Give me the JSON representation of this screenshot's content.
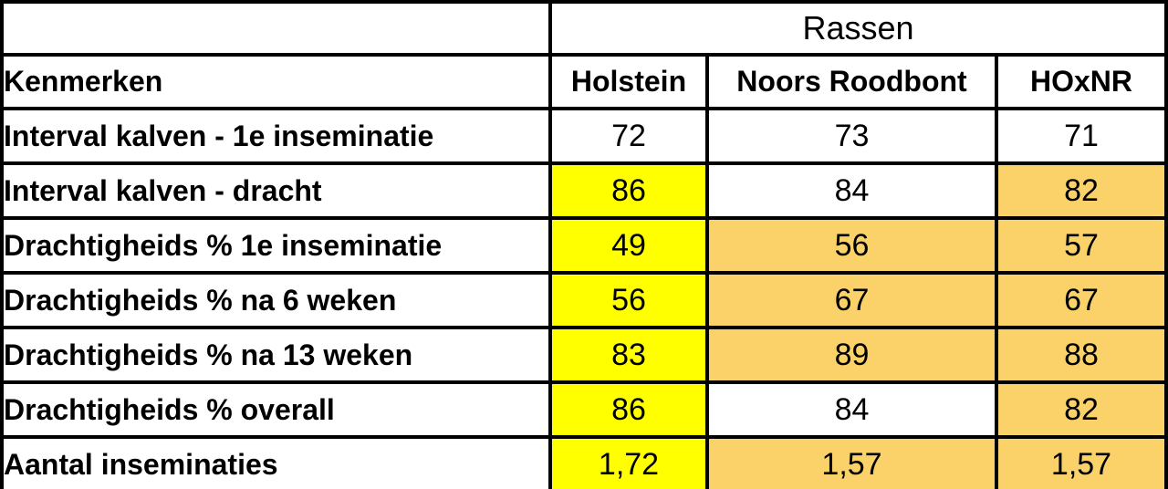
{
  "colors": {
    "white": "#ffffff",
    "yellow": "#ffff00",
    "gold": "#fbd269",
    "border": "#000000",
    "text": "#000000"
  },
  "chart_data": {
    "type": "table",
    "group_header": "Rassen",
    "corner_header": "Kenmerken",
    "columns": [
      "Holstein",
      "Noors Roodbont",
      "HOxNR"
    ],
    "rows": [
      {
        "label": "Interval kalven - 1e inseminatie",
        "values": [
          "72",
          "73",
          "71"
        ],
        "fills": [
          "white",
          "white",
          "white"
        ]
      },
      {
        "label": "Interval kalven - dracht",
        "values": [
          "86",
          "84",
          "82"
        ],
        "fills": [
          "yellow",
          "white",
          "gold"
        ]
      },
      {
        "label": "Drachtigheids % 1e inseminatie",
        "values": [
          "49",
          "56",
          "57"
        ],
        "fills": [
          "yellow",
          "gold",
          "gold"
        ]
      },
      {
        "label": "Drachtigheids % na 6 weken",
        "values": [
          "56",
          "67",
          "67"
        ],
        "fills": [
          "yellow",
          "gold",
          "gold"
        ]
      },
      {
        "label": "Drachtigheids % na 13 weken",
        "values": [
          "83",
          "89",
          "88"
        ],
        "fills": [
          "yellow",
          "gold",
          "gold"
        ]
      },
      {
        "label": "Drachtigheids % overall",
        "values": [
          "86",
          "84",
          "82"
        ],
        "fills": [
          "yellow",
          "white",
          "gold"
        ]
      },
      {
        "label": "Aantal inseminaties",
        "values": [
          "1,72",
          "1,57",
          "1,57"
        ],
        "fills": [
          "yellow",
          "gold",
          "gold"
        ]
      }
    ]
  }
}
